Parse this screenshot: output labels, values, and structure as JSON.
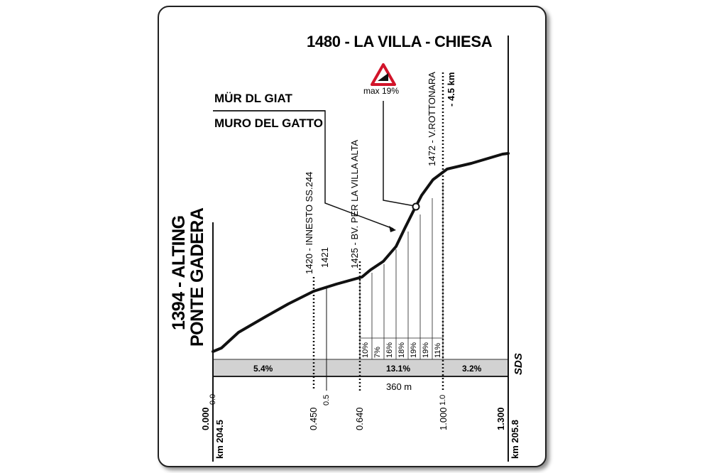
{
  "finish": {
    "label": "1480 - LA VILLA - CHIESA"
  },
  "start": {
    "altitude_name": "1394 - ALTING",
    "subname": "PONTE GADERA"
  },
  "waypoints": [
    {
      "label": "1420 - INNESTO SS.244"
    },
    {
      "label": "1421"
    },
    {
      "label": "1425 - BV. PER LA VILLA ALTA"
    },
    {
      "label": "1472 - V.ROTTONARA"
    }
  ],
  "remaining": {
    "label": "- 4.5 km"
  },
  "climb": {
    "name_ladin": "MÜR DL GIAT",
    "name_italian": "MURO DEL GATTO"
  },
  "max_gradient": {
    "label": "max 19%",
    "sign_icon": "steep-gradient-warning-icon"
  },
  "gradient_bar": {
    "segments": [
      {
        "label": "5.4%"
      },
      {
        "label": "13.1%"
      },
      {
        "label": "3.2%"
      }
    ],
    "fill_color": "#d2d2d2"
  },
  "steep_section": {
    "length_label": "360 m",
    "micro_gradients": [
      "10%",
      "7%",
      "16%",
      "18%",
      "19%",
      "19%",
      "11%"
    ]
  },
  "brand": {
    "label": "SDS"
  },
  "distance_ticks": [
    {
      "label": "0.0"
    },
    {
      "label": "0.450"
    },
    {
      "label": "0.5"
    },
    {
      "label": "0.640"
    },
    {
      "label": "1.0"
    },
    {
      "label": "1.000"
    }
  ],
  "axis_ends": [
    {
      "top": "0.000",
      "bottom": "km 204.5"
    },
    {
      "top": "1.300",
      "bottom": "km 205.8"
    }
  ],
  "chart_data": {
    "type": "area",
    "x_unit": "km",
    "y_unit": "m",
    "x": [
      0.0,
      0.45,
      0.5,
      0.64,
      0.86,
      1.0,
      1.3
    ],
    "y": [
      1394,
      1420,
      1421,
      1425,
      1463,
      1472,
      1480
    ],
    "ylabel": "",
    "xlabel": ""
  }
}
